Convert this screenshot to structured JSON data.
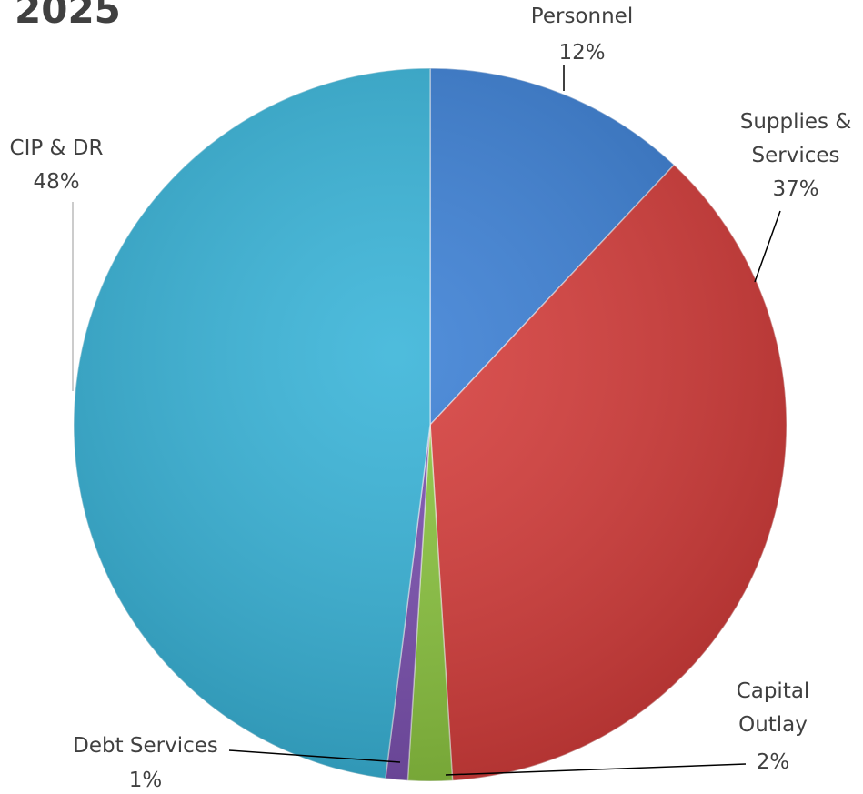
{
  "chart_data": {
    "type": "pie",
    "title": "2025",
    "categories": [
      "Personnel",
      "Supplies & Services",
      "Capital Outlay",
      "Debt Services",
      "CIP & DR"
    ],
    "values": [
      12,
      37,
      2,
      1,
      48
    ],
    "value_labels": [
      "12%",
      "37%",
      "2%",
      "1%",
      "48%"
    ],
    "colors": [
      "#3a7fd5",
      "#d63c3a",
      "#8cc63f",
      "#7a4fb0",
      "#36b3d8"
    ]
  }
}
